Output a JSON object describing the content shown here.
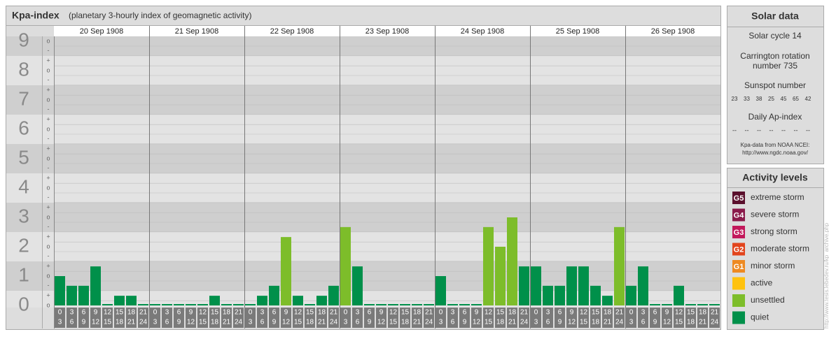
{
  "chart_data": {
    "type": "bar",
    "title": "Kpa-index",
    "subtitle": "(planetary 3-hourly index of geomagnetic activity)",
    "ylim": [
      0,
      9
    ],
    "yticks": [
      0,
      1,
      2,
      3,
      4,
      5,
      6,
      7,
      8,
      9
    ],
    "minor_ticks": [
      {
        "value": 0,
        "label": "o"
      },
      {
        "value": 0.33,
        "label": "+"
      },
      {
        "value": 0.67,
        "label": "-"
      },
      {
        "value": 1,
        "label": "o"
      },
      {
        "value": 1.33,
        "label": "+"
      },
      {
        "value": 1.67,
        "label": "-"
      },
      {
        "value": 2,
        "label": "o"
      },
      {
        "value": 2.33,
        "label": "+"
      },
      {
        "value": 2.67,
        "label": "-"
      },
      {
        "value": 3,
        "label": "o"
      },
      {
        "value": 3.33,
        "label": "+"
      },
      {
        "value": 3.67,
        "label": "-"
      },
      {
        "value": 4,
        "label": "o"
      },
      {
        "value": 4.33,
        "label": "+"
      },
      {
        "value": 4.67,
        "label": "-"
      },
      {
        "value": 5,
        "label": "o"
      },
      {
        "value": 5.33,
        "label": "+"
      },
      {
        "value": 5.67,
        "label": "-"
      },
      {
        "value": 6,
        "label": "o"
      },
      {
        "value": 6.33,
        "label": "+"
      },
      {
        "value": 6.67,
        "label": "-"
      },
      {
        "value": 7,
        "label": "o"
      },
      {
        "value": 7.33,
        "label": "+"
      },
      {
        "value": 7.67,
        "label": "-"
      },
      {
        "value": 8,
        "label": "o"
      },
      {
        "value": 8.33,
        "label": "+"
      },
      {
        "value": 8.67,
        "label": "-"
      },
      {
        "value": 9,
        "label": "o"
      }
    ],
    "interval_start": [
      0,
      3,
      6,
      9,
      12,
      15,
      18,
      21
    ],
    "interval_end": [
      3,
      6,
      9,
      12,
      15,
      18,
      21,
      24
    ],
    "days": [
      {
        "date": "20 Sep 1908",
        "values": [
          1,
          0.67,
          0.67,
          1.33,
          0,
          0.33,
          0.33,
          0
        ],
        "colors": [
          "#00904a",
          "#00904a",
          "#00904a",
          "#00904a",
          "#00904a",
          "#00904a",
          "#00904a",
          "#00904a"
        ]
      },
      {
        "date": "21 Sep 1908",
        "values": [
          0,
          0,
          0,
          0,
          0,
          0.33,
          0,
          0
        ],
        "colors": [
          "#00904a",
          "#00904a",
          "#00904a",
          "#00904a",
          "#00904a",
          "#00904a",
          "#00904a",
          "#00904a"
        ]
      },
      {
        "date": "22 Sep 1908",
        "values": [
          0,
          0.33,
          0.67,
          2.33,
          0.33,
          0,
          0.33,
          0.67
        ],
        "colors": [
          "#00904a",
          "#00904a",
          "#00904a",
          "#7dbd2a",
          "#00904a",
          "#00904a",
          "#00904a",
          "#00904a"
        ]
      },
      {
        "date": "23 Sep 1908",
        "values": [
          2.67,
          1.33,
          0,
          0,
          0,
          0,
          0,
          0
        ],
        "colors": [
          "#7dbd2a",
          "#00904a",
          "#00904a",
          "#00904a",
          "#00904a",
          "#00904a",
          "#00904a",
          "#00904a"
        ]
      },
      {
        "date": "24 Sep 1908",
        "values": [
          1,
          0,
          0,
          0,
          2.67,
          2,
          3,
          1.33
        ],
        "colors": [
          "#00904a",
          "#00904a",
          "#00904a",
          "#00904a",
          "#7dbd2a",
          "#7dbd2a",
          "#7dbd2a",
          "#00904a"
        ]
      },
      {
        "date": "25 Sep 1908",
        "values": [
          1.33,
          0.67,
          0.67,
          1.33,
          1.33,
          0.67,
          0.33,
          2.67
        ],
        "colors": [
          "#00904a",
          "#00904a",
          "#00904a",
          "#00904a",
          "#00904a",
          "#00904a",
          "#00904a",
          "#7dbd2a"
        ]
      },
      {
        "date": "26 Sep 1908",
        "values": [
          0.67,
          1.33,
          0,
          0,
          0.67,
          0,
          0,
          0
        ],
        "colors": [
          "#00904a",
          "#00904a",
          "#00904a",
          "#00904a",
          "#00904a",
          "#00904a",
          "#00904a",
          "#00904a"
        ]
      }
    ]
  },
  "solar_data": {
    "title": "Solar data",
    "cycle": "Solar cycle 14",
    "carrington": [
      "Carrington rotation",
      "number 735"
    ],
    "sunspot_title": "Sunspot number",
    "sunspots": [
      23,
      33,
      38,
      25,
      45,
      65,
      42
    ],
    "ap_title": "Daily Ap-index",
    "ap": [
      "--",
      "--",
      "--",
      "--",
      "--",
      "--",
      "--"
    ],
    "source": [
      "Kpa-data from NOAA NCEI:",
      "http://www.ngdc.noaa.gov/"
    ]
  },
  "activity_levels": {
    "title": "Activity levels",
    "levels": [
      {
        "badge": "G5",
        "label": "extreme storm",
        "color": "#5a0f2c"
      },
      {
        "badge": "G4",
        "label": "severe storm",
        "color": "#8a1a4a"
      },
      {
        "badge": "G3",
        "label": "strong storm",
        "color": "#c2185b"
      },
      {
        "badge": "G2",
        "label": "moderate storm",
        "color": "#e2441c"
      },
      {
        "badge": "G1",
        "label": "minor storm",
        "color": "#ee8a22"
      },
      {
        "label": "active",
        "color": "#ffc20e"
      },
      {
        "label": "unsettled",
        "color": "#7dbd2a"
      },
      {
        "label": "quiet",
        "color": "#00904a"
      }
    ]
  },
  "watermark": "http://www.tesis.lebedev.ru/kp_archive.php"
}
